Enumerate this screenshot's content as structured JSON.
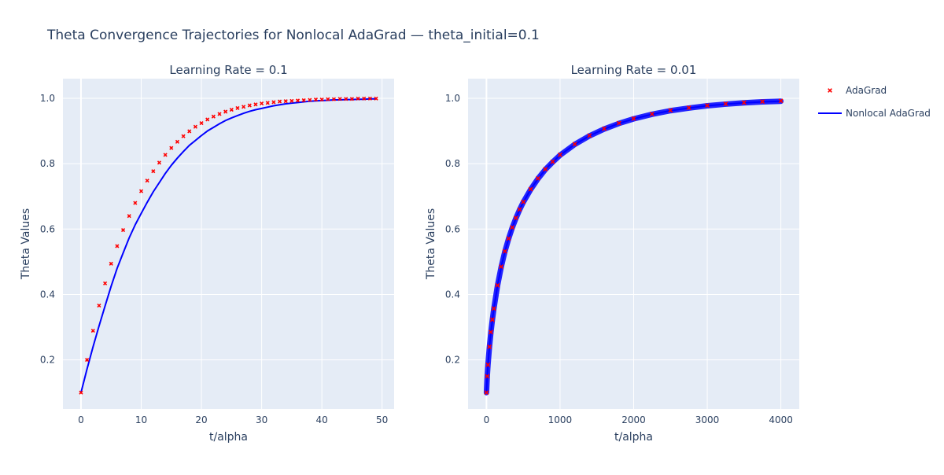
{
  "figure": {
    "title": "Theta Convergence Trajectories for Nonlocal AdaGrad — theta_initial=0.1"
  },
  "colors": {
    "plot_bg": "#e5ecf6",
    "grid": "#ffffff",
    "text": "#2a3f5f",
    "adagrad": "#ff0000",
    "nonlocal": "#0000ff"
  },
  "legend": {
    "placement": "right",
    "items": [
      {
        "label": "AdaGrad",
        "symbol": "x",
        "color": "#ff0000"
      },
      {
        "label": "Nonlocal AdaGrad",
        "symbol": "line",
        "color": "#0000ff"
      }
    ]
  },
  "chart_data": [
    {
      "type": "scatter",
      "title": "Learning Rate = 0.1",
      "xlabel": "t/alpha",
      "ylabel": "Theta Values",
      "xlim": [
        -3,
        52
      ],
      "ylim": [
        0.05,
        1.06
      ],
      "xticks": [
        0,
        10,
        20,
        30,
        40,
        50
      ],
      "yticks": [
        0.2,
        0.4,
        0.6,
        0.8,
        1.0
      ],
      "ytick_labels": [
        "0.2",
        "0.4",
        "0.6",
        "0.8",
        "1.0"
      ],
      "grid": true,
      "series": [
        {
          "name": "AdaGrad",
          "mode": "markers",
          "marker": "x",
          "color": "#ff0000",
          "x": [
            0,
            1,
            2,
            3,
            4,
            5,
            6,
            7,
            8,
            9,
            10,
            11,
            12,
            13,
            14,
            15,
            16,
            17,
            18,
            19,
            20,
            21,
            22,
            23,
            24,
            25,
            26,
            27,
            28,
            29,
            30,
            31,
            32,
            33,
            34,
            35,
            36,
            37,
            38,
            39,
            40,
            41,
            42,
            43,
            44,
            45,
            46,
            47,
            48,
            49
          ],
          "y": [
            0.1,
            0.2,
            0.289,
            0.366,
            0.434,
            0.494,
            0.548,
            0.597,
            0.64,
            0.68,
            0.716,
            0.748,
            0.777,
            0.803,
            0.827,
            0.848,
            0.867,
            0.884,
            0.899,
            0.913,
            0.924,
            0.935,
            0.944,
            0.952,
            0.959,
            0.965,
            0.97,
            0.974,
            0.978,
            0.981,
            0.984,
            0.986,
            0.988,
            0.99,
            0.991,
            0.992,
            0.993,
            0.994,
            0.995,
            0.996,
            0.996,
            0.997,
            0.997,
            0.998,
            0.998,
            0.998,
            0.999,
            0.999,
            0.999,
            0.999
          ]
        },
        {
          "name": "Nonlocal AdaGrad",
          "mode": "lines",
          "color": "#0000ff",
          "x": [
            0,
            1,
            2,
            3,
            4,
            5,
            6,
            7,
            8,
            9,
            10,
            11,
            12,
            13,
            14,
            15,
            16,
            17,
            18,
            19,
            20,
            21,
            22,
            23,
            24,
            25,
            26,
            27,
            28,
            29,
            30,
            31,
            32,
            33,
            34,
            35,
            36,
            37,
            38,
            39,
            40,
            41,
            42,
            43,
            44,
            45,
            46,
            47,
            48,
            49
          ],
          "y": [
            0.1,
            0.172,
            0.24,
            0.304,
            0.365,
            0.425,
            0.48,
            0.527,
            0.573,
            0.613,
            0.648,
            0.682,
            0.714,
            0.742,
            0.77,
            0.795,
            0.817,
            0.837,
            0.856,
            0.871,
            0.886,
            0.9,
            0.911,
            0.922,
            0.932,
            0.94,
            0.947,
            0.954,
            0.96,
            0.965,
            0.969,
            0.973,
            0.977,
            0.98,
            0.983,
            0.985,
            0.987,
            0.989,
            0.991,
            0.992,
            0.993,
            0.994,
            0.995,
            0.995,
            0.996,
            0.996,
            0.997,
            0.997,
            0.998,
            0.998
          ]
        }
      ]
    },
    {
      "type": "scatter",
      "title": "Learning Rate = 0.01",
      "xlabel": "t/alpha",
      "ylabel": "Theta Values",
      "xlim": [
        -250,
        4250
      ],
      "ylim": [
        0.05,
        1.06
      ],
      "xticks": [
        0,
        1000,
        2000,
        3000,
        4000
      ],
      "yticks": [
        0.2,
        0.4,
        0.6,
        0.8,
        1.0
      ],
      "ytick_labels": [
        "0.2",
        "0.4",
        "0.6",
        "0.8",
        "1.0"
      ],
      "grid": true,
      "series": [
        {
          "name": "AdaGrad",
          "mode": "markers",
          "marker": "x",
          "color": "#ff0000",
          "x": [
            0,
            10,
            20,
            40,
            60,
            80,
            100,
            150,
            200,
            250,
            300,
            350,
            400,
            450,
            500,
            600,
            700,
            800,
            900,
            1000,
            1200,
            1400,
            1600,
            1800,
            2000,
            2250,
            2500,
            2750,
            3000,
            3250,
            3500,
            3750,
            4000
          ],
          "y": [
            0.1,
            0.15,
            0.185,
            0.24,
            0.285,
            0.323,
            0.357,
            0.428,
            0.485,
            0.532,
            0.571,
            0.605,
            0.634,
            0.66,
            0.683,
            0.722,
            0.755,
            0.783,
            0.806,
            0.827,
            0.86,
            0.886,
            0.907,
            0.924,
            0.938,
            0.952,
            0.963,
            0.971,
            0.978,
            0.983,
            0.987,
            0.99,
            0.992
          ]
        },
        {
          "name": "Nonlocal AdaGrad",
          "mode": "lines",
          "color": "#0000ff",
          "x": [
            0,
            10,
            20,
            40,
            60,
            80,
            100,
            150,
            200,
            250,
            300,
            350,
            400,
            450,
            500,
            600,
            700,
            800,
            900,
            1000,
            1200,
            1400,
            1600,
            1800,
            2000,
            2250,
            2500,
            2750,
            3000,
            3250,
            3500,
            3750,
            4000
          ],
          "y": [
            0.1,
            0.149,
            0.184,
            0.239,
            0.284,
            0.322,
            0.356,
            0.427,
            0.484,
            0.531,
            0.57,
            0.604,
            0.633,
            0.659,
            0.682,
            0.721,
            0.754,
            0.782,
            0.805,
            0.826,
            0.859,
            0.885,
            0.906,
            0.923,
            0.937,
            0.951,
            0.962,
            0.97,
            0.977,
            0.982,
            0.986,
            0.989,
            0.991
          ]
        }
      ]
    }
  ]
}
